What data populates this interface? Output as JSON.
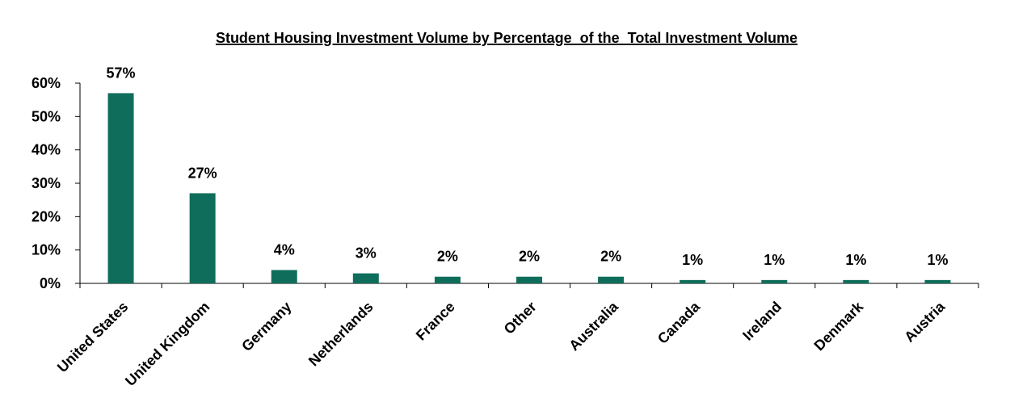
{
  "colors": {
    "bar": "#0f6e5b",
    "axis": "#000000",
    "text": "#000000",
    "background": "#ffffff"
  },
  "chart_data": {
    "type": "bar",
    "title": "Student Housing Investment Volume by Percentage  of the  Total Investment Volume",
    "xlabel": "",
    "ylabel": "",
    "ylim": [
      0,
      60
    ],
    "y_tick_values": [
      0,
      10,
      20,
      30,
      40,
      50,
      60
    ],
    "y_tick_labels": [
      "0%",
      "10%",
      "20%",
      "30%",
      "40%",
      "50%",
      "60%"
    ],
    "grid": false,
    "legend": "none",
    "categories": [
      "United States",
      "United Kingdom",
      "Germany",
      "Netherlands",
      "France",
      "Other",
      "Australia",
      "Canada",
      "Ireland",
      "Denmark",
      "Austria"
    ],
    "values": [
      57,
      27,
      4,
      3,
      2,
      2,
      2,
      1,
      1,
      1,
      1
    ],
    "data_labels": [
      "57%",
      "27%",
      "4%",
      "3%",
      "2%",
      "2%",
      "2%",
      "1%",
      "1%",
      "1%",
      "1%"
    ]
  }
}
